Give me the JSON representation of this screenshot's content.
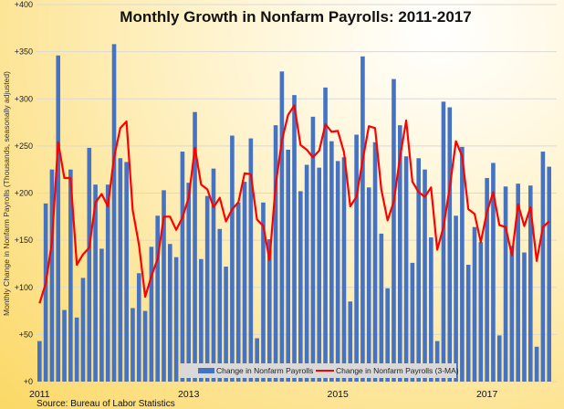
{
  "chart_data": {
    "type": "bar",
    "title": "Monthly Growth in Nonfarm Payrolls: 2011-2017",
    "ylabel": "Monthly Change in Nonfarm Payrolls (Thousands, seasonally adjusted)",
    "xlabel": "",
    "source": "Source: Bureau of Labor Statistics",
    "ylim": [
      0,
      400
    ],
    "yticks": [
      "+0",
      "+50",
      "+100",
      "+150",
      "+200",
      "+250",
      "+300",
      "+350",
      "+400"
    ],
    "x_range": [
      "2011-01",
      "2017-11"
    ],
    "xtick_labels": [
      {
        "label": "2011",
        "month": "2011-01"
      },
      {
        "label": "2013",
        "month": "2013-01"
      },
      {
        "label": "2015",
        "month": "2015-01"
      },
      {
        "label": "2017",
        "month": "2017-01"
      }
    ],
    "grid": true,
    "legend_position": "bottom",
    "series": [
      {
        "name": "Change in Nonfarm Payrolls",
        "type": "bar",
        "color": "#4472c4",
        "values": [
          43,
          189,
          225,
          346,
          76,
          225,
          68,
          110,
          248,
          209,
          141,
          209,
          358,
          237,
          233,
          78,
          115,
          75,
          143,
          176,
          203,
          146,
          132,
          244,
          211,
          286,
          130,
          197,
          226,
          162,
          122,
          261,
          190,
          212,
          258,
          46,
          190,
          151,
          272,
          329,
          246,
          304,
          202,
          230,
          281,
          227,
          312,
          255,
          234,
          238,
          85,
          262,
          345,
          206,
          254,
          157,
          99,
          321,
          272,
          239,
          126,
          237,
          225,
          153,
          43,
          297,
          291,
          176,
          249,
          124,
          164,
          148,
          216,
          232,
          49,
          207,
          144,
          210,
          137,
          208,
          37,
          244,
          228
        ]
      },
      {
        "name": "Change in Nonfarm Payrolls (3-MA)",
        "type": "line",
        "color": "#ff0000",
        "values": [
          83,
          104,
          148,
          254,
          216,
          216,
          124,
          135,
          142,
          190,
          199,
          186,
          238,
          269,
          276,
          182,
          145,
          90,
          112,
          130,
          175,
          175,
          161,
          174,
          195,
          248,
          209,
          204,
          185,
          195,
          170,
          183,
          190,
          221,
          220,
          172,
          165,
          129,
          209,
          256,
          283,
          293,
          251,
          246,
          238,
          245,
          273,
          265,
          266,
          243,
          186,
          196,
          235,
          271,
          269,
          204,
          171,
          191,
          238,
          277,
          212,
          201,
          196,
          206,
          140,
          164,
          206,
          255,
          239,
          183,
          178,
          148,
          180,
          201,
          166,
          164,
          134,
          188,
          165,
          185,
          128,
          164,
          170
        ]
      }
    ]
  }
}
